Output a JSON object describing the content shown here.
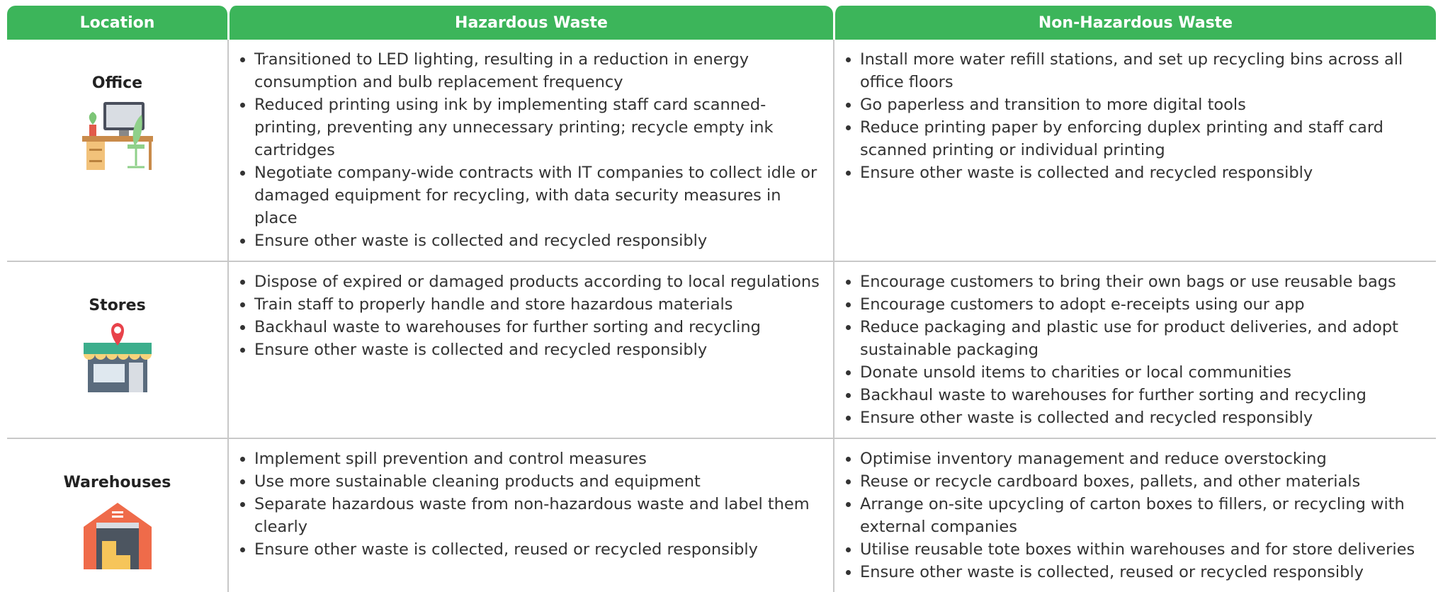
{
  "header": {
    "columns": [
      "Location",
      "Hazardous Waste",
      "Non-Hazardous Waste"
    ]
  },
  "table": {
    "rows": [
      {
        "location": "Office",
        "hazardous": [
          "Transitioned to LED lighting, resulting in a reduction in energy consumption and bulb replacement frequency",
          "Reduced printing using ink by implementing staff card scanned-printing, preventing any unnecessary printing; recycle empty ink cartridges",
          "Negotiate company-wide contracts with IT companies to collect idle or damaged equipment for recycling, with data security measures in place",
          "Ensure other waste is collected and recycled responsibly"
        ],
        "non_hazardous": [
          "Install more water refill stations, and set up recycling bins across all office floors",
          "Go paperless and transition to more digital tools",
          "Reduce printing paper by enforcing duplex printing and staff card scanned printing or individual printing",
          "Ensure other waste is collected and recycled responsibly"
        ]
      },
      {
        "location": "Stores",
        "hazardous": [
          "Dispose of expired or damaged products according to local regulations",
          "Train staff to properly handle and store hazardous materials",
          "Backhaul waste to warehouses for further sorting and recycling",
          "Ensure other waste is collected and recycled responsibly"
        ],
        "non_hazardous": [
          "Encourage customers to bring their own bags or use reusable bags",
          "Encourage customers to adopt e-receipts using our app",
          "Reduce packaging and plastic use for product deliveries, and adopt sustainable packaging",
          "Donate unsold items to charities or local communities",
          "Backhaul waste to warehouses for further sorting and recycling",
          "Ensure other waste is collected and recycled responsibly"
        ]
      },
      {
        "location": "Warehouses",
        "hazardous": [
          "Implement spill prevention and control measures",
          "Use more sustainable cleaning products and equipment",
          "Separate hazardous waste from non-hazardous waste and label them clearly",
          "Ensure other waste is collected, reused or recycled responsibly"
        ],
        "non_hazardous": [
          "Optimise inventory management and reduce overstocking",
          "Reuse or recycle cardboard boxes, pallets, and other materials",
          "Arrange on-site upcycling of carton boxes to fillers, or recycling with external companies",
          "Utilise reusable tote boxes within warehouses and for store deliveries",
          "Ensure other waste is collected, reused or recycled responsibly"
        ]
      }
    ]
  }
}
